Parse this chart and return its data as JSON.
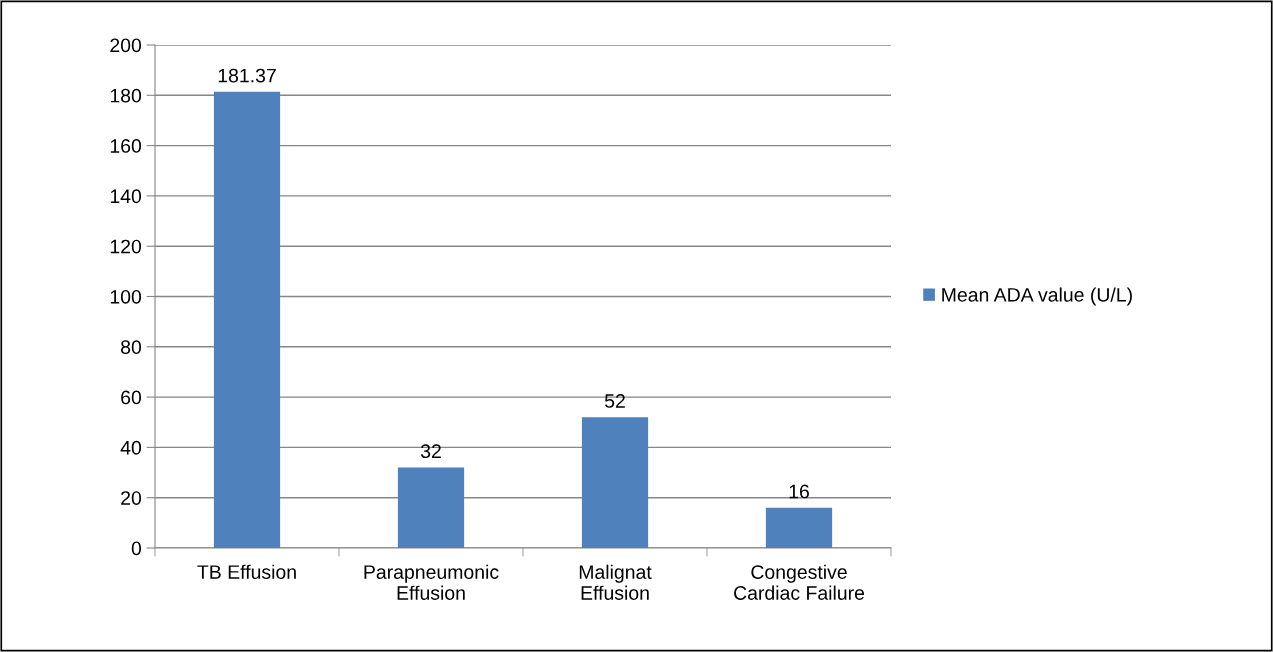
{
  "chart_data": {
    "type": "bar",
    "categories": [
      "TB Effusion",
      "Parapneumonic\nEffusion",
      "Malignat\nEffusion",
      "Congestive\nCardiac Failure"
    ],
    "series": [
      {
        "name": "Mean ADA value (U/L)",
        "color": "#4f81bd",
        "values": [
          181.37,
          32,
          52,
          16
        ]
      }
    ],
    "ylim": [
      0,
      200
    ],
    "yticks": [
      0,
      20,
      40,
      60,
      80,
      100,
      120,
      140,
      160,
      180,
      200
    ],
    "grid": "y",
    "legend": "right",
    "data_labels": true
  }
}
